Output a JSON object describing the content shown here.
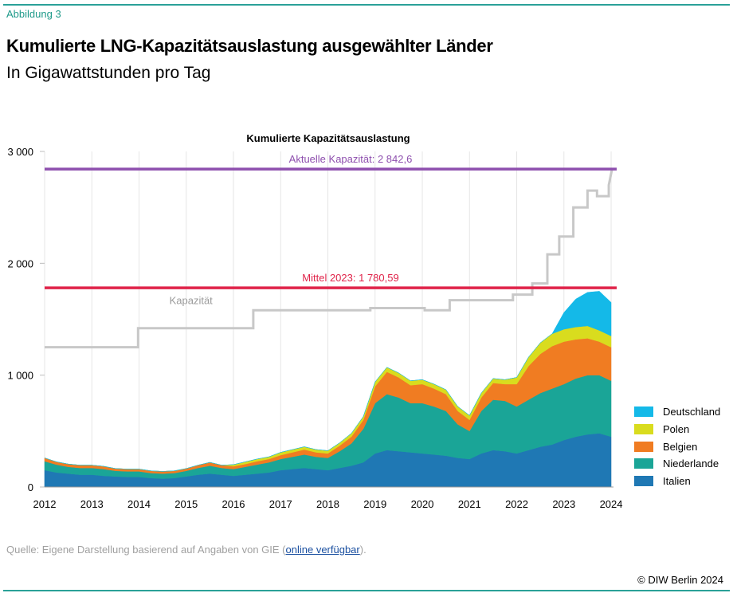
{
  "figure_label": "Abbildung 3",
  "title": "Kumulierte LNG-Kapazitätsauslastung ausgewählter Länder",
  "subtitle": "In Gigawattstunden pro Tag",
  "source": {
    "prefix": "Quelle: Eigene Darstellung basierend auf Angaben von GIE (",
    "link_text": "online verfügbar",
    "suffix": ")."
  },
  "copyright": "© DIW Berlin 2024",
  "chart_data": {
    "type": "area",
    "title": "Kumulierte Kapazitätsauslastung",
    "xlabel": "",
    "ylabel": "",
    "xlim": [
      2012,
      2024.05
    ],
    "ylim": [
      0,
      3000
    ],
    "x_ticks": [
      "2012",
      "2013",
      "2014",
      "2015",
      "2016",
      "2017",
      "2018",
      "2019",
      "2020",
      "2021",
      "2022",
      "2023",
      "2024"
    ],
    "y_ticks": [
      "0",
      "1 000",
      "2 000",
      "3 000"
    ],
    "grid": "vertical",
    "legend_position": "bottom-right",
    "stacked": true,
    "x": [
      2012.0,
      2012.25,
      2012.5,
      2012.75,
      2013.0,
      2013.25,
      2013.5,
      2013.75,
      2014.0,
      2014.25,
      2014.5,
      2014.75,
      2015.0,
      2015.25,
      2015.5,
      2015.75,
      2016.0,
      2016.25,
      2016.5,
      2016.75,
      2017.0,
      2017.25,
      2017.5,
      2017.75,
      2018.0,
      2018.25,
      2018.5,
      2018.75,
      2019.0,
      2019.25,
      2019.5,
      2019.75,
      2020.0,
      2020.25,
      2020.5,
      2020.75,
      2021.0,
      2021.25,
      2021.5,
      2021.75,
      2022.0,
      2022.25,
      2022.5,
      2022.75,
      2023.0,
      2023.25,
      2023.5,
      2023.75,
      2024.0
    ],
    "series": [
      {
        "name": "Italien",
        "color": "#1f78b4",
        "values": [
          150,
          130,
          120,
          110,
          110,
          100,
          95,
          90,
          90,
          80,
          75,
          80,
          95,
          110,
          120,
          110,
          100,
          110,
          120,
          130,
          150,
          160,
          170,
          160,
          150,
          170,
          190,
          220,
          300,
          330,
          320,
          310,
          300,
          290,
          280,
          260,
          250,
          300,
          330,
          320,
          300,
          330,
          360,
          380,
          420,
          450,
          470,
          480,
          450
        ]
      },
      {
        "name": "Niederlande",
        "color": "#1aa597",
        "values": [
          80,
          70,
          60,
          60,
          60,
          60,
          50,
          50,
          50,
          45,
          45,
          45,
          50,
          60,
          70,
          60,
          60,
          70,
          80,
          90,
          100,
          110,
          120,
          110,
          110,
          150,
          200,
          300,
          450,
          500,
          480,
          440,
          450,
          430,
          400,
          300,
          250,
          380,
          450,
          450,
          420,
          450,
          480,
          500,
          500,
          520,
          530,
          520,
          500
        ]
      },
      {
        "name": "Belgien",
        "color": "#f07c22",
        "values": [
          30,
          25,
          25,
          25,
          25,
          25,
          20,
          20,
          20,
          20,
          20,
          20,
          20,
          25,
          30,
          25,
          25,
          25,
          30,
          30,
          35,
          40,
          45,
          40,
          40,
          50,
          60,
          80,
          150,
          200,
          180,
          160,
          170,
          160,
          150,
          120,
          100,
          120,
          150,
          150,
          200,
          300,
          350,
          380,
          380,
          350,
          330,
          300,
          300
        ]
      },
      {
        "name": "Polen",
        "color": "#d9dc1e",
        "values": [
          0,
          0,
          0,
          0,
          0,
          0,
          0,
          0,
          0,
          0,
          0,
          0,
          0,
          0,
          0,
          0,
          15,
          20,
          20,
          20,
          25,
          25,
          25,
          25,
          25,
          25,
          30,
          30,
          40,
          40,
          40,
          40,
          40,
          40,
          40,
          40,
          40,
          40,
          40,
          40,
          60,
          80,
          100,
          110,
          110,
          110,
          110,
          100,
          100
        ]
      },
      {
        "name": "Deutschland",
        "color": "#14b9e8",
        "values": [
          0,
          0,
          0,
          0,
          0,
          0,
          0,
          0,
          0,
          0,
          0,
          0,
          0,
          0,
          0,
          0,
          0,
          0,
          0,
          0,
          0,
          0,
          0,
          0,
          0,
          0,
          0,
          0,
          0,
          0,
          0,
          0,
          0,
          0,
          0,
          0,
          0,
          0,
          0,
          0,
          0,
          0,
          0,
          0,
          150,
          250,
          300,
          350,
          300
        ]
      }
    ],
    "capacity": {
      "name": "Kapazität",
      "color": "#c8c8c8",
      "points": [
        [
          2012.0,
          1250
        ],
        [
          2013.98,
          1250
        ],
        [
          2013.98,
          1420
        ],
        [
          2016.42,
          1420
        ],
        [
          2016.42,
          1580
        ],
        [
          2018.9,
          1580
        ],
        [
          2018.9,
          1600
        ],
        [
          2020.05,
          1600
        ],
        [
          2020.05,
          1580
        ],
        [
          2020.58,
          1580
        ],
        [
          2020.58,
          1670
        ],
        [
          2021.92,
          1670
        ],
        [
          2021.92,
          1720
        ],
        [
          2022.33,
          1720
        ],
        [
          2022.33,
          1820
        ],
        [
          2022.65,
          1820
        ],
        [
          2022.65,
          2080
        ],
        [
          2022.9,
          2080
        ],
        [
          2022.9,
          2240
        ],
        [
          2023.2,
          2240
        ],
        [
          2023.2,
          2500
        ],
        [
          2023.5,
          2500
        ],
        [
          2023.5,
          2650
        ],
        [
          2023.7,
          2650
        ],
        [
          2023.7,
          2600
        ],
        [
          2023.95,
          2600
        ],
        [
          2023.95,
          2700
        ],
        [
          2024.02,
          2842.6
        ]
      ]
    },
    "reference_lines": [
      {
        "label": "Aktuelle Kapazität: 2 842,6",
        "value": 2842.6,
        "color": "#8e4fae"
      },
      {
        "label": "Mittel 2023: 1 780,59",
        "value": 1780.59,
        "color": "#e0244a"
      }
    ]
  }
}
